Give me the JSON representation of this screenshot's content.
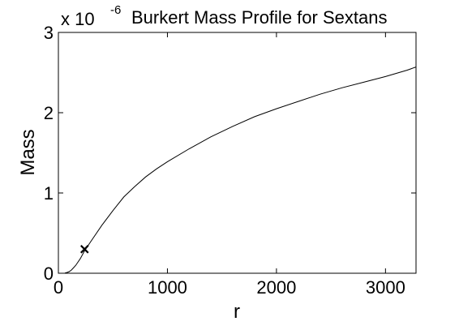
{
  "chart_data": {
    "type": "line",
    "title": "Burkert Mass Profile for Sextans",
    "xlabel": "r",
    "ylabel": "Mass",
    "xlim": [
      0,
      3280
    ],
    "ylim": [
      0,
      3
    ],
    "y_scale_prefix": "x 10",
    "y_scale_exponent": "-6",
    "xticks": [
      0,
      1000,
      2000,
      3000
    ],
    "xtick_labels": [
      "0",
      "1000",
      "2000",
      "3000"
    ],
    "yticks": [
      0,
      1,
      2,
      3
    ],
    "ytick_labels": [
      "0",
      "1",
      "2",
      "3"
    ],
    "grid": false,
    "series": [
      {
        "color": "#000000",
        "x": [
          60,
          80,
          100,
          120,
          140,
          160,
          180,
          200,
          220,
          240,
          300,
          400,
          500,
          600,
          700,
          800,
          900,
          1000,
          1200,
          1400,
          1600,
          1800,
          2000,
          2200,
          2400,
          2600,
          2800,
          3000,
          3200,
          3280
        ],
        "y": [
          0.003,
          0.01,
          0.02,
          0.04,
          0.07,
          0.1,
          0.14,
          0.18,
          0.23,
          0.28,
          0.4,
          0.6,
          0.78,
          0.95,
          1.08,
          1.2,
          1.3,
          1.39,
          1.55,
          1.7,
          1.83,
          1.95,
          2.05,
          2.14,
          2.23,
          2.31,
          2.38,
          2.45,
          2.53,
          2.57
        ]
      }
    ],
    "markers": [
      {
        "symbol": "x",
        "x": 240,
        "y": 0.3,
        "color": "#000000"
      }
    ]
  }
}
